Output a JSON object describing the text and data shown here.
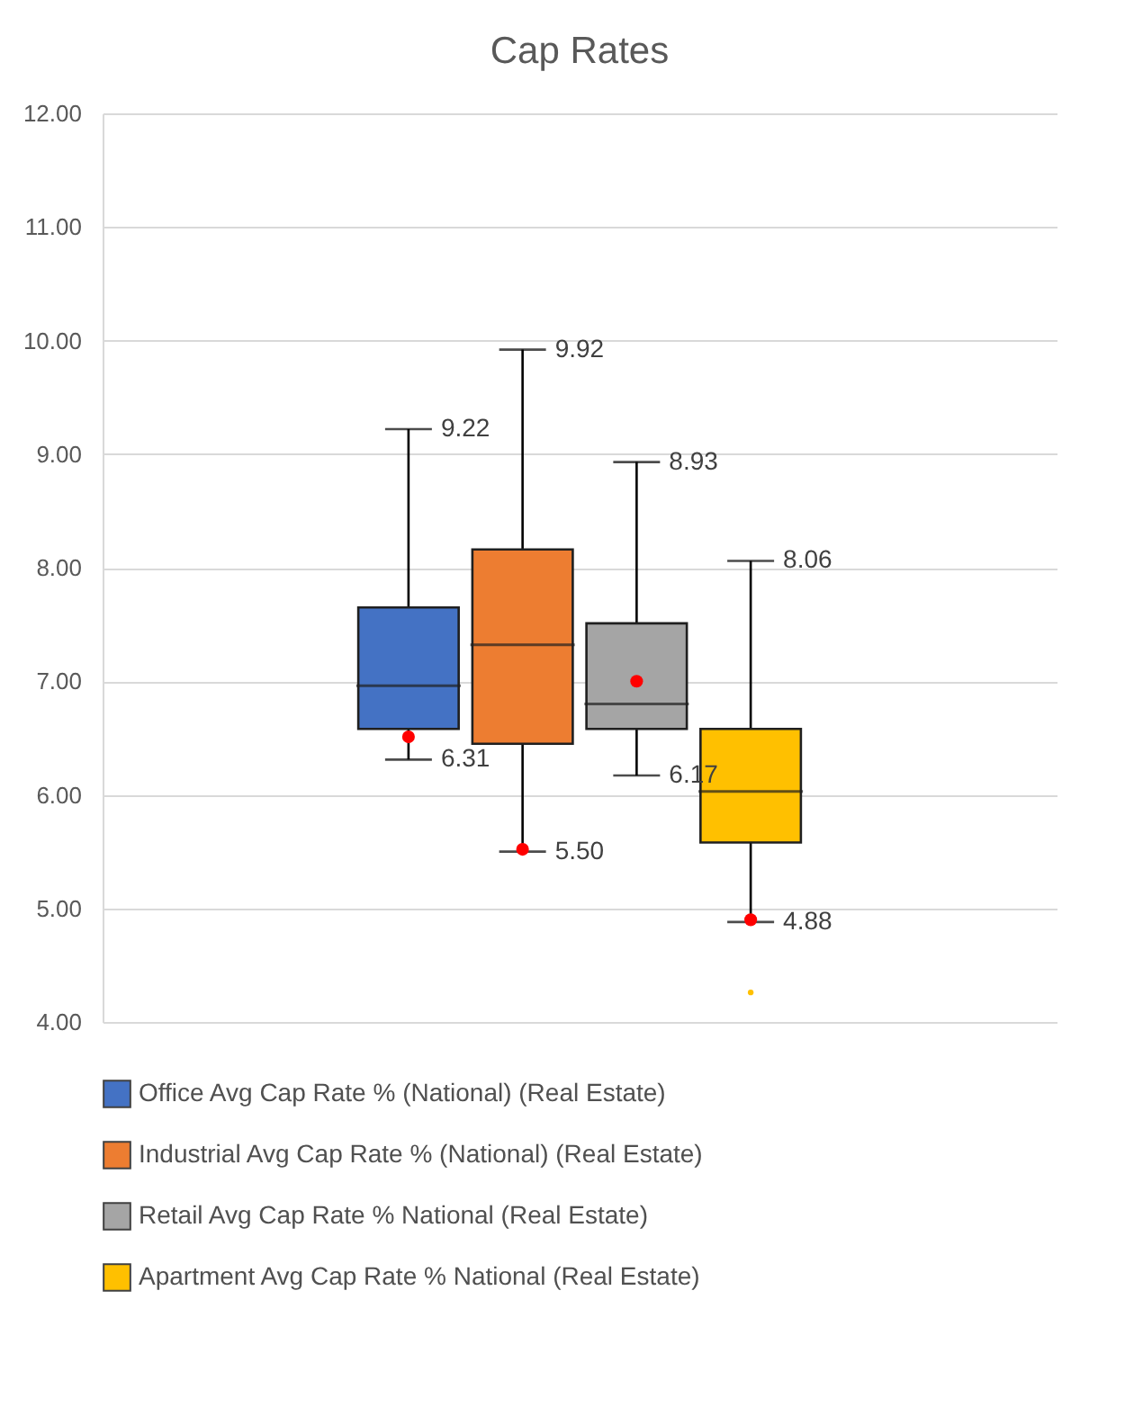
{
  "chart_data": {
    "type": "box",
    "title": "Cap Rates",
    "categories": [
      null
    ],
    "ylim": [
      4,
      12
    ],
    "yticks": [
      {
        "value": 4,
        "label": "4.00"
      },
      {
        "value": 5,
        "label": "5.00"
      },
      {
        "value": 6,
        "label": "6.00"
      },
      {
        "value": 7,
        "label": "7.00"
      },
      {
        "value": 8,
        "label": "8.00"
      },
      {
        "value": 9,
        "label": "9.00"
      },
      {
        "value": 10,
        "label": "10.00"
      },
      {
        "value": 11,
        "label": "11.00"
      },
      {
        "value": 12,
        "label": "12.00"
      }
    ],
    "grid": "y",
    "legend": "bottom",
    "annotations": [
      "9.22",
      "6.31",
      "9.92",
      "5.50",
      "8.93",
      "6.17",
      "8.06",
      "4.88"
    ],
    "series": [
      {
        "name": "Office Avg Cap Rate % (National) (Real Estate)",
        "color": "#4472c4",
        "boxes": [
          {
            "low": 6.31,
            "q1": 6.58,
            "median": 6.96,
            "q3": 7.65,
            "high": 9.22,
            "mean": 6.51
          }
        ]
      },
      {
        "name": "Industrial Avg Cap Rate % (National) (Real Estate)",
        "color": "#ed7d31",
        "boxes": [
          {
            "low": 5.5,
            "q1": 6.45,
            "median": 7.32,
            "q3": 8.16,
            "high": 9.92,
            "mean": 5.52
          }
        ]
      },
      {
        "name": "Retail Avg Cap Rate % National (Real Estate)",
        "color": "#a5a5a5",
        "boxes": [
          {
            "low": 6.17,
            "q1": 6.58,
            "median": 6.8,
            "q3": 7.51,
            "high": 8.93,
            "mean": 7.0
          }
        ]
      },
      {
        "name": "Apartment Avg Cap Rate % National (Real Estate)",
        "color": "#ffc000",
        "boxes": [
          {
            "low": 4.88,
            "q1": 5.58,
            "median": 6.03,
            "q3": 6.58,
            "high": 8.06,
            "mean": 4.9,
            "outliers": [
              4.26
            ]
          }
        ]
      }
    ]
  }
}
